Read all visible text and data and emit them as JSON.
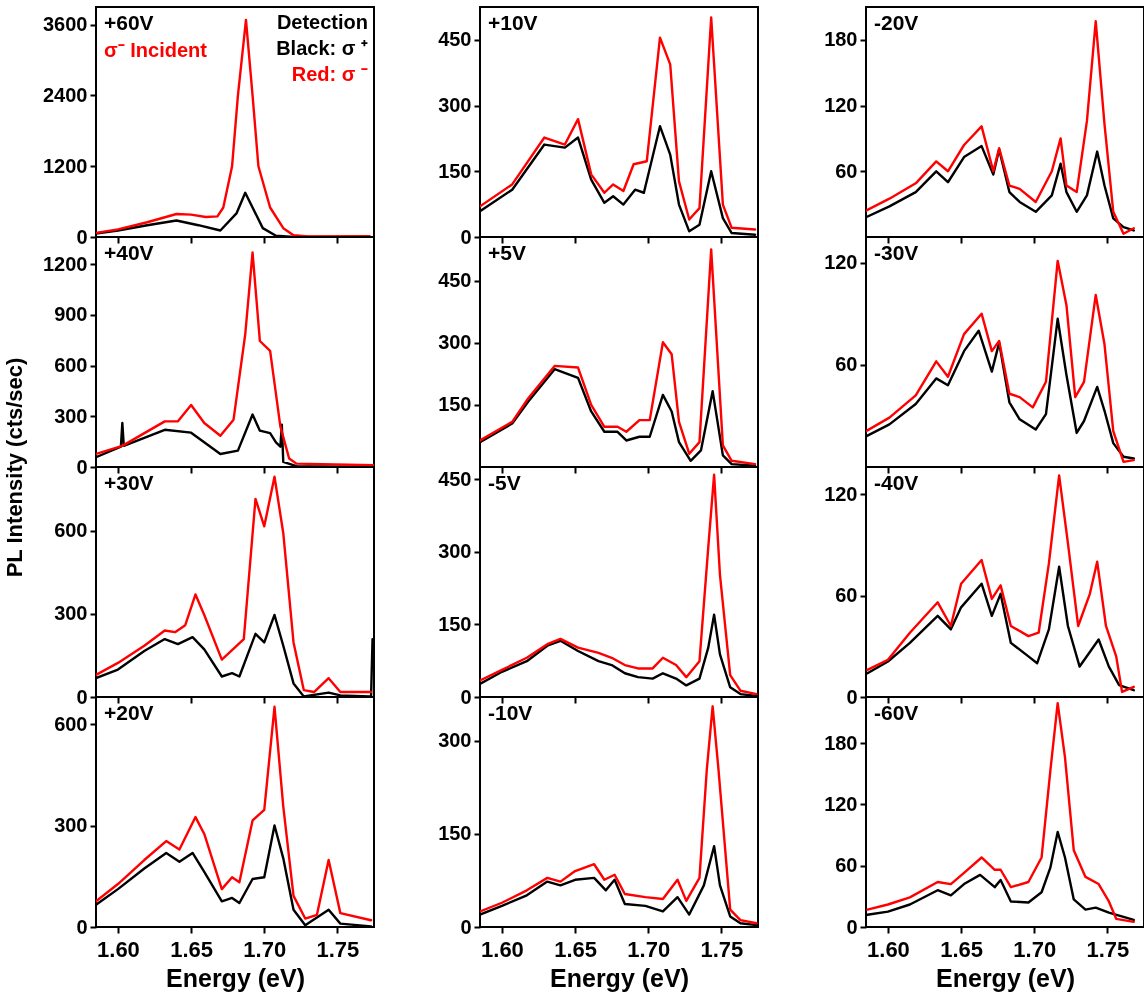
{
  "chart_data": [
    {
      "type": "line",
      "title": "+60V",
      "annotations": [
        "σ⁻ Incident",
        "Detection",
        "Black: σ ⁺",
        "Red: σ ⁻"
      ],
      "xlim": [
        1.585,
        1.775
      ],
      "xticks": [
        1.6,
        1.65,
        1.7,
        1.75
      ],
      "ylim": [
        0,
        3900
      ],
      "yticks": [
        0,
        1200,
        2400,
        3600
      ],
      "tick_labels": "y",
      "series": [
        {
          "color": "#000000",
          "x": [
            1.585,
            1.6,
            1.62,
            1.64,
            1.655,
            1.67,
            1.681,
            1.687,
            1.692,
            1.699,
            1.708,
            1.72,
            1.772
          ],
          "values": [
            60,
            110,
            200,
            280,
            200,
            110,
            400,
            750,
            500,
            150,
            20,
            0,
            2
          ]
        },
        {
          "color": "#ff0000",
          "x": [
            1.585,
            1.6,
            1.62,
            1.64,
            1.65,
            1.66,
            1.668,
            1.672,
            1.678,
            1.682,
            1.6875,
            1.692,
            1.696,
            1.704,
            1.713,
            1.72,
            1.73,
            1.772
          ],
          "values": [
            70,
            130,
            250,
            390,
            380,
            340,
            350,
            500,
            1200,
            2400,
            3680,
            2400,
            1200,
            500,
            150,
            30,
            10,
            12
          ]
        }
      ]
    },
    {
      "type": "line",
      "title": "+10V",
      "xlim": [
        1.585,
        1.775
      ],
      "xticks": [
        1.6,
        1.65,
        1.7,
        1.75
      ],
      "ylim": [
        0,
        525
      ],
      "yticks": [
        0,
        150,
        300,
        450
      ],
      "tick_labels": "y",
      "series": [
        {
          "color": "#000000",
          "x": [
            1.585,
            1.607,
            1.629,
            1.643,
            1.652,
            1.661,
            1.67,
            1.676,
            1.683,
            1.691,
            1.697,
            1.708,
            1.715,
            1.721,
            1.728,
            1.735,
            1.743,
            1.751,
            1.757,
            1.773
          ],
          "values": [
            59,
            108,
            211,
            204,
            227,
            131,
            78,
            93,
            74,
            108,
            101,
            253,
            188,
            74,
            13,
            28,
            150,
            43,
            9,
            5
          ]
        },
        {
          "color": "#ff0000",
          "x": [
            1.585,
            1.607,
            1.629,
            1.643,
            1.652,
            1.661,
            1.67,
            1.676,
            1.683,
            1.69,
            1.699,
            1.708,
            1.715,
            1.721,
            1.728,
            1.735,
            1.743,
            1.751,
            1.757,
            1.773
          ],
          "values": [
            70,
            120,
            227,
            211,
            269,
            143,
            101,
            120,
            105,
            166,
            173,
            455,
            394,
            127,
            40,
            66,
            501,
            74,
            21,
            17
          ]
        }
      ]
    },
    {
      "type": "line",
      "title": "-20V",
      "xlim": [
        1.585,
        1.775
      ],
      "xticks": [
        1.6,
        1.65,
        1.7,
        1.75
      ],
      "ylim": [
        0,
        210
      ],
      "yticks": [
        60,
        120,
        180
      ],
      "tick_labels": "y",
      "series": [
        {
          "color": "#000000",
          "x": [
            1.585,
            1.601,
            1.619,
            1.633,
            1.641,
            1.652,
            1.664,
            1.672,
            1.676,
            1.683,
            1.69,
            1.701,
            1.712,
            1.718,
            1.722,
            1.729,
            1.736,
            1.743,
            1.748,
            1.754,
            1.761,
            1.768
          ],
          "values": [
            18,
            28,
            41,
            60,
            50,
            73,
            83,
            57,
            80,
            41,
            32,
            23,
            38,
            67,
            41,
            23,
            38,
            78,
            47,
            17,
            9,
            6
          ]
        },
        {
          "color": "#ff0000",
          "x": [
            1.585,
            1.601,
            1.619,
            1.633,
            1.641,
            1.652,
            1.664,
            1.672,
            1.676,
            1.683,
            1.69,
            1.701,
            1.712,
            1.718,
            1.722,
            1.729,
            1.736,
            1.742,
            1.748,
            1.754,
            1.761,
            1.768
          ],
          "values": [
            24,
            35,
            49,
            69,
            60,
            84,
            101,
            60,
            81,
            47,
            44,
            32,
            60,
            90,
            47,
            41,
            106,
            197,
            103,
            23,
            3,
            8
          ]
        }
      ]
    },
    {
      "type": "line",
      "title": "+40V",
      "ylabel": "PL Intensity (cts/sec)",
      "xlim": [
        1.585,
        1.775
      ],
      "xticks": [
        1.6,
        1.65,
        1.7,
        1.75
      ],
      "ylim": [
        0,
        1360
      ],
      "yticks": [
        0,
        300,
        600,
        900,
        1200
      ],
      "tick_labels": "y",
      "series": [
        {
          "color": "#000000",
          "x": [
            1.585,
            1.602,
            1.603,
            1.604,
            1.632,
            1.65,
            1.67,
            1.682,
            1.692,
            1.697,
            1.704,
            1.708,
            1.711,
            1.712,
            1.713,
            1.722,
            1.775
          ],
          "values": [
            58,
            120,
            260,
            125,
            220,
            203,
            77,
            97,
            310,
            215,
            200,
            145,
            120,
            250,
            30,
            5,
            0
          ]
        },
        {
          "color": "#ff0000",
          "x": [
            1.585,
            1.603,
            1.632,
            1.641,
            1.65,
            1.659,
            1.67,
            1.679,
            1.687,
            1.692,
            1.697,
            1.704,
            1.711,
            1.717,
            1.722,
            1.775
          ],
          "values": [
            77,
            125,
            270,
            270,
            367,
            260,
            185,
            280,
            785,
            1268,
            745,
            687,
            240,
            50,
            20,
            10
          ]
        }
      ]
    },
    {
      "type": "line",
      "title": "+5V",
      "xlim": [
        1.585,
        1.775
      ],
      "xticks": [
        1.6,
        1.65,
        1.7,
        1.75
      ],
      "ylim": [
        0,
        555
      ],
      "yticks": [
        150,
        300,
        450
      ],
      "tick_labels": "y",
      "series": [
        {
          "color": "#000000",
          "x": [
            1.585,
            1.607,
            1.618,
            1.636,
            1.652,
            1.661,
            1.67,
            1.679,
            1.685,
            1.694,
            1.701,
            1.71,
            1.716,
            1.721,
            1.729,
            1.736,
            1.744,
            1.751,
            1.757,
            1.773
          ],
          "values": [
            60,
            105,
            158,
            236,
            215,
            134,
            85,
            85,
            64,
            73,
            73,
            174,
            134,
            60,
            15,
            40,
            183,
            28,
            7,
            3
          ]
        },
        {
          "color": "#ff0000",
          "x": [
            1.585,
            1.607,
            1.618,
            1.636,
            1.652,
            1.661,
            1.67,
            1.679,
            1.685,
            1.694,
            1.701,
            1.71,
            1.716,
            1.721,
            1.728,
            1.735,
            1.743,
            1.751,
            1.757,
            1.773
          ],
          "values": [
            64,
            109,
            166,
            244,
            240,
            150,
            97,
            97,
            85,
            113,
            113,
            301,
            272,
            109,
            32,
            60,
            525,
            52,
            15,
            7
          ]
        }
      ]
    },
    {
      "type": "line",
      "title": "-30V",
      "xlim": [
        1.585,
        1.775
      ],
      "xticks": [
        1.6,
        1.65,
        1.7,
        1.75
      ],
      "ylim": [
        0,
        135
      ],
      "yticks": [
        60,
        120
      ],
      "tick_labels": "y",
      "series": [
        {
          "color": "#000000",
          "x": [
            1.585,
            1.601,
            1.619,
            1.633,
            1.641,
            1.652,
            1.662,
            1.671,
            1.676,
            1.683,
            1.69,
            1.701,
            1.708,
            1.716,
            1.722,
            1.729,
            1.734,
            1.743,
            1.748,
            1.754,
            1.761,
            1.768
          ],
          "values": [
            18,
            25,
            37,
            52,
            48,
            68,
            80,
            56,
            73,
            38,
            28,
            22,
            31,
            87,
            54,
            20,
            27,
            47,
            33,
            14,
            6,
            5
          ]
        },
        {
          "color": "#ff0000",
          "x": [
            1.585,
            1.601,
            1.619,
            1.633,
            1.641,
            1.652,
            1.664,
            1.671,
            1.676,
            1.683,
            1.69,
            1.699,
            1.708,
            1.716,
            1.722,
            1.728,
            1.734,
            1.742,
            1.748,
            1.754,
            1.761,
            1.768
          ],
          "values": [
            21,
            29,
            42,
            62,
            53,
            78,
            90,
            68,
            74,
            43,
            41,
            35,
            50,
            121,
            95,
            41,
            50,
            101,
            72,
            21,
            3,
            4
          ]
        }
      ]
    },
    {
      "type": "line",
      "title": "+30V",
      "xlim": [
        1.585,
        1.775
      ],
      "xticks": [
        1.6,
        1.65,
        1.7,
        1.75
      ],
      "ylim": [
        0,
        830
      ],
      "yticks": [
        0,
        300,
        600
      ],
      "tick_labels": "y",
      "series": [
        {
          "color": "#000000",
          "x": [
            1.585,
            1.6,
            1.618,
            1.632,
            1.641,
            1.651,
            1.659,
            1.671,
            1.678,
            1.683,
            1.694,
            1.7,
            1.707,
            1.713,
            1.72,
            1.727,
            1.744,
            1.752,
            1.772,
            1.773,
            1.774
          ],
          "values": [
            68,
            99,
            166,
            209,
            191,
            216,
            172,
            74,
            86,
            74,
            228,
            197,
            296,
            185,
            49,
            2,
            16,
            6,
            2,
            2,
            209
          ]
        },
        {
          "color": "#ff0000",
          "x": [
            1.585,
            1.6,
            1.618,
            1.632,
            1.639,
            1.646,
            1.653,
            1.659,
            1.671,
            1.68,
            1.686,
            1.694,
            1.7,
            1.707,
            1.713,
            1.72,
            1.727,
            1.734,
            1.744,
            1.752,
            1.773
          ],
          "values": [
            80,
            123,
            185,
            240,
            234,
            259,
            370,
            296,
            135,
            179,
            209,
            715,
            616,
            795,
            591,
            197,
            25,
            18,
            68,
            18,
            18
          ]
        }
      ]
    },
    {
      "type": "line",
      "title": "-5V",
      "xlim": [
        1.585,
        1.775
      ],
      "xticks": [
        1.6,
        1.65,
        1.7,
        1.75
      ],
      "ylim": [
        0,
        475
      ],
      "yticks": [
        0,
        150,
        300,
        450
      ],
      "tick_labels": "y",
      "series": [
        {
          "color": "#000000",
          "x": [
            1.585,
            1.6,
            1.617,
            1.631,
            1.64,
            1.652,
            1.666,
            1.675,
            1.684,
            1.693,
            1.703,
            1.71,
            1.719,
            1.726,
            1.735,
            1.741,
            1.745,
            1.749,
            1.756,
            1.763,
            1.774
          ],
          "values": [
            27,
            52,
            74,
            106,
            116,
            95,
            74,
            66,
            49,
            41,
            38,
            49,
            38,
            24,
            38,
            102,
            170,
            88,
            20,
            6,
            2
          ]
        },
        {
          "color": "#ff0000",
          "x": [
            1.585,
            1.6,
            1.617,
            1.631,
            1.64,
            1.652,
            1.666,
            1.675,
            1.684,
            1.693,
            1.703,
            1.71,
            1.719,
            1.726,
            1.735,
            1.741,
            1.745,
            1.749,
            1.756,
            1.763,
            1.774
          ],
          "values": [
            34,
            56,
            81,
            109,
            120,
            102,
            91,
            81,
            66,
            59,
            59,
            81,
            66,
            41,
            74,
            309,
            459,
            252,
            45,
            13,
            6
          ]
        }
      ]
    },
    {
      "type": "line",
      "title": "-40V",
      "xlim": [
        1.585,
        1.775
      ],
      "xticks": [
        1.6,
        1.65,
        1.7,
        1.75
      ],
      "ylim": [
        0,
        136
      ],
      "yticks": [
        0,
        60,
        120
      ],
      "tick_labels": "y",
      "series": [
        {
          "color": "#000000",
          "x": [
            1.586,
            1.6,
            1.615,
            1.634,
            1.643,
            1.65,
            1.664,
            1.671,
            1.677,
            1.684,
            1.696,
            1.702,
            1.71,
            1.717,
            1.723,
            1.731,
            1.744,
            1.751,
            1.758,
            1.768
          ],
          "values": [
            14,
            21,
            32,
            48,
            40,
            53,
            67,
            48,
            61,
            32,
            24,
            20,
            40,
            77,
            42,
            18,
            34,
            18,
            7,
            4
          ]
        },
        {
          "color": "#ff0000",
          "x": [
            1.586,
            1.6,
            1.615,
            1.634,
            1.643,
            1.65,
            1.664,
            1.671,
            1.677,
            1.684,
            1.696,
            1.703,
            1.71,
            1.717,
            1.723,
            1.73,
            1.738,
            1.743,
            1.749,
            1.756,
            1.76,
            1.768
          ],
          "values": [
            16,
            22,
            38,
            56,
            42,
            67,
            81,
            58,
            66,
            42,
            36,
            38,
            79,
            131,
            91,
            42,
            61,
            80,
            42,
            24,
            3,
            6
          ]
        }
      ]
    },
    {
      "type": "line",
      "title": "+20V",
      "xlabel": "Energy (eV)",
      "xlim": [
        1.585,
        1.775
      ],
      "xticks": [
        {
          "value": 1.6,
          "label": "1.60"
        },
        {
          "value": 1.65,
          "label": "1.65"
        },
        {
          "value": 1.7,
          "label": "1.70"
        },
        {
          "value": 1.75,
          "label": "1.75"
        }
      ],
      "ylim": [
        0,
        680
      ],
      "yticks": [
        0,
        300,
        600
      ],
      "series": [
        {
          "color": "#000000",
          "x": [
            1.585,
            1.6,
            1.618,
            1.633,
            1.642,
            1.651,
            1.659,
            1.671,
            1.678,
            1.683,
            1.692,
            1.7,
            1.707,
            1.713,
            1.72,
            1.728,
            1.744,
            1.752,
            1.773
          ],
          "values": [
            66,
            112,
            173,
            219,
            193,
            219,
            163,
            76,
            86,
            71,
            142,
            147,
            300,
            203,
            51,
            5,
            51,
            10,
            2
          ]
        },
        {
          "color": "#ff0000",
          "x": [
            1.585,
            1.6,
            1.618,
            1.633,
            1.642,
            1.653,
            1.659,
            1.671,
            1.678,
            1.683,
            1.692,
            1.7,
            1.707,
            1.713,
            1.72,
            1.728,
            1.736,
            1.744,
            1.752,
            1.773
          ],
          "values": [
            76,
            127,
            198,
            254,
            229,
            325,
            275,
            112,
            147,
            132,
            315,
            346,
            651,
            356,
            92,
            25,
            36,
            198,
            41,
            20
          ]
        }
      ]
    },
    {
      "type": "line",
      "title": "-10V",
      "xlabel": "Energy (eV)",
      "xlim": [
        1.585,
        1.775
      ],
      "xticks": [
        {
          "value": 1.6,
          "label": "1.60"
        },
        {
          "value": 1.65,
          "label": "1.65"
        },
        {
          "value": 1.7,
          "label": "1.70"
        },
        {
          "value": 1.75,
          "label": "1.75"
        }
      ],
      "ylim": [
        0,
        370
      ],
      "yticks": [
        0,
        150,
        300
      ],
      "series": [
        {
          "color": "#000000",
          "x": [
            1.585,
            1.6,
            1.617,
            1.631,
            1.64,
            1.65,
            1.663,
            1.671,
            1.677,
            1.684,
            1.698,
            1.71,
            1.72,
            1.728,
            1.738,
            1.745,
            1.749,
            1.756,
            1.763,
            1.774
          ],
          "values": [
            20,
            34,
            51,
            73,
            67,
            76,
            79,
            59,
            76,
            37,
            34,
            25,
            48,
            20,
            67,
            130,
            67,
            17,
            6,
            3
          ]
        },
        {
          "color": "#ff0000",
          "x": [
            1.585,
            1.6,
            1.617,
            1.631,
            1.64,
            1.65,
            1.663,
            1.67,
            1.677,
            1.684,
            1.698,
            1.71,
            1.72,
            1.726,
            1.735,
            1.74,
            1.744,
            1.748,
            1.756,
            1.763,
            1.774
          ],
          "values": [
            25,
            39,
            59,
            79,
            73,
            90,
            101,
            76,
            84,
            53,
            48,
            45,
            76,
            42,
            79,
            253,
            355,
            253,
            28,
            11,
            6
          ]
        }
      ]
    },
    {
      "type": "line",
      "title": "-60V",
      "xlabel": "Energy (eV)",
      "xlim": [
        1.585,
        1.775
      ],
      "xticks": [
        {
          "value": 1.6,
          "label": "1.60"
        },
        {
          "value": 1.65,
          "label": "1.65"
        },
        {
          "value": 1.7,
          "label": "1.70"
        },
        {
          "value": 1.75,
          "label": "1.75"
        }
      ],
      "ylim": [
        0,
        225
      ],
      "yticks": [
        0,
        60,
        120,
        180
      ],
      "series": [
        {
          "color": "#000000",
          "x": [
            1.586,
            1.6,
            1.615,
            1.634,
            1.643,
            1.652,
            1.663,
            1.673,
            1.677,
            1.684,
            1.696,
            1.705,
            1.711,
            1.716,
            1.721,
            1.727,
            1.735,
            1.742,
            1.751,
            1.768
          ],
          "values": [
            12,
            15,
            22,
            36,
            31,
            42,
            51,
            39,
            46,
            25,
            24,
            34,
            58,
            93,
            68,
            27,
            17,
            19,
            14,
            7
          ]
        },
        {
          "color": "#ff0000",
          "x": [
            1.586,
            1.6,
            1.615,
            1.634,
            1.643,
            1.652,
            1.664,
            1.673,
            1.677,
            1.684,
            1.696,
            1.705,
            1.711,
            1.716,
            1.721,
            1.727,
            1.735,
            1.744,
            1.751,
            1.756,
            1.768
          ],
          "values": [
            17,
            22,
            29,
            44,
            42,
            53,
            68,
            56,
            56,
            39,
            44,
            68,
            153,
            219,
            166,
            75,
            49,
            42,
            25,
            8,
            5
          ]
        }
      ]
    }
  ]
}
